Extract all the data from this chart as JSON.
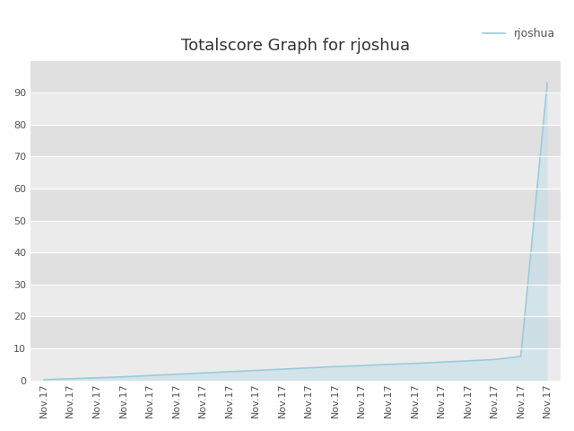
{
  "title": "Totalscore Graph for rjoshua",
  "legend_label": "rjoshua",
  "background_color": "#ffffff",
  "plot_bg_color": "#e5e5e5",
  "line_color": "#99ccdd",
  "fill_color": "#bbdde8",
  "n_points": 20,
  "x_tick_label": "Nov.17",
  "ylim": [
    0,
    100
  ],
  "yticks": [
    0,
    10,
    20,
    30,
    40,
    50,
    60,
    70,
    80,
    90
  ],
  "grid_color": "#ffffff",
  "title_fontsize": 13,
  "tick_fontsize": 8,
  "tick_color": "#555555",
  "y_values": [
    0.2,
    0.5,
    0.8,
    1.1,
    1.5,
    1.9,
    2.3,
    2.7,
    3.1,
    3.5,
    3.9,
    4.3,
    4.6,
    5.0,
    5.3,
    5.7,
    6.1,
    6.5,
    7.5,
    93.0
  ]
}
